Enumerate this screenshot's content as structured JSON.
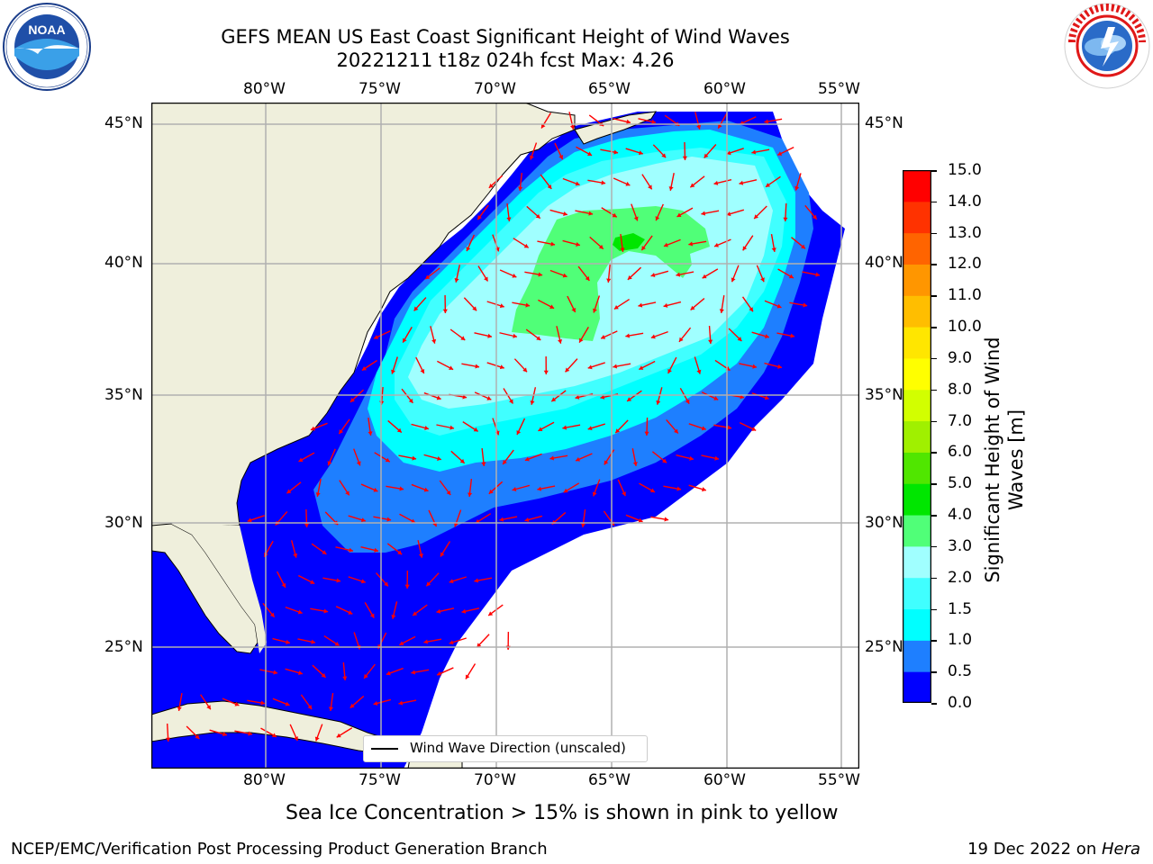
{
  "title": {
    "line1": "GEFS MEAN US East Coast Significant Height of Wind Waves",
    "line2": "20221211 t18z 024h fcst   Max: 4.26"
  },
  "logos": {
    "left": {
      "text": "NOAA",
      "ring_text": "NATIONAL OCEANIC AND ATMOSPHERIC ADMINISTRATION · U.S. DEPARTMENT OF COMMERCE"
    },
    "right": {
      "ring_text": "NATIONAL WEATHER SERVICE"
    }
  },
  "map": {
    "lon_labels": [
      "80°W",
      "75°W",
      "70°W",
      "65°W",
      "60°W",
      "55°W"
    ],
    "lat_labels": [
      "45°N",
      "40°N",
      "35°N",
      "30°N",
      "25°N"
    ],
    "lon_values": [
      -80,
      -75,
      -70,
      -65,
      -60,
      -55
    ],
    "lat_values": [
      45,
      40,
      35,
      30,
      25
    ],
    "extent": {
      "lon": [
        -85,
        -54.3
      ],
      "lat": [
        20.3,
        46.1
      ]
    },
    "legend": "Wind Wave Direction (unscaled)"
  },
  "colorbar": {
    "label_line1": "Significant Height of Wind",
    "label_line2": "Waves [m]",
    "ticks": [
      "0.0",
      "0.5",
      "1.0",
      "1.5",
      "2.0",
      "3.0",
      "4.0",
      "5.0",
      "6.0",
      "7.0",
      "8.0",
      "9.0",
      "10.0",
      "11.0",
      "12.0",
      "13.0",
      "14.0",
      "15.0"
    ],
    "colors": [
      "#0000ff",
      "#1e7fff",
      "#00ffff",
      "#40ffff",
      "#a0ffff",
      "#50ff78",
      "#00e600",
      "#50e600",
      "#a0f000",
      "#d2ff00",
      "#ffff00",
      "#ffe600",
      "#ffbe00",
      "#ff9600",
      "#ff6400",
      "#ff3200",
      "#ff0000"
    ]
  },
  "sea_ice_note": "Sea Ice Concentration > 15% is shown in pink to yellow",
  "footer": {
    "left": "NCEP/EMC/Verification Post Processing Product Generation Branch",
    "right_date": "19 Dec 2022 on ",
    "right_host": "Hera"
  },
  "colors": {
    "land": "#efefdc",
    "wave_0": "#0000ff",
    "wave_05": "#1e7fff",
    "wave_1": "#00ffff",
    "wave_15": "#40ffff",
    "wave_2": "#a0ffff",
    "wave_3": "#50ff78",
    "wave_4": "#00e600",
    "arrow": "#ff0000",
    "grid": "#b0b0b0"
  }
}
